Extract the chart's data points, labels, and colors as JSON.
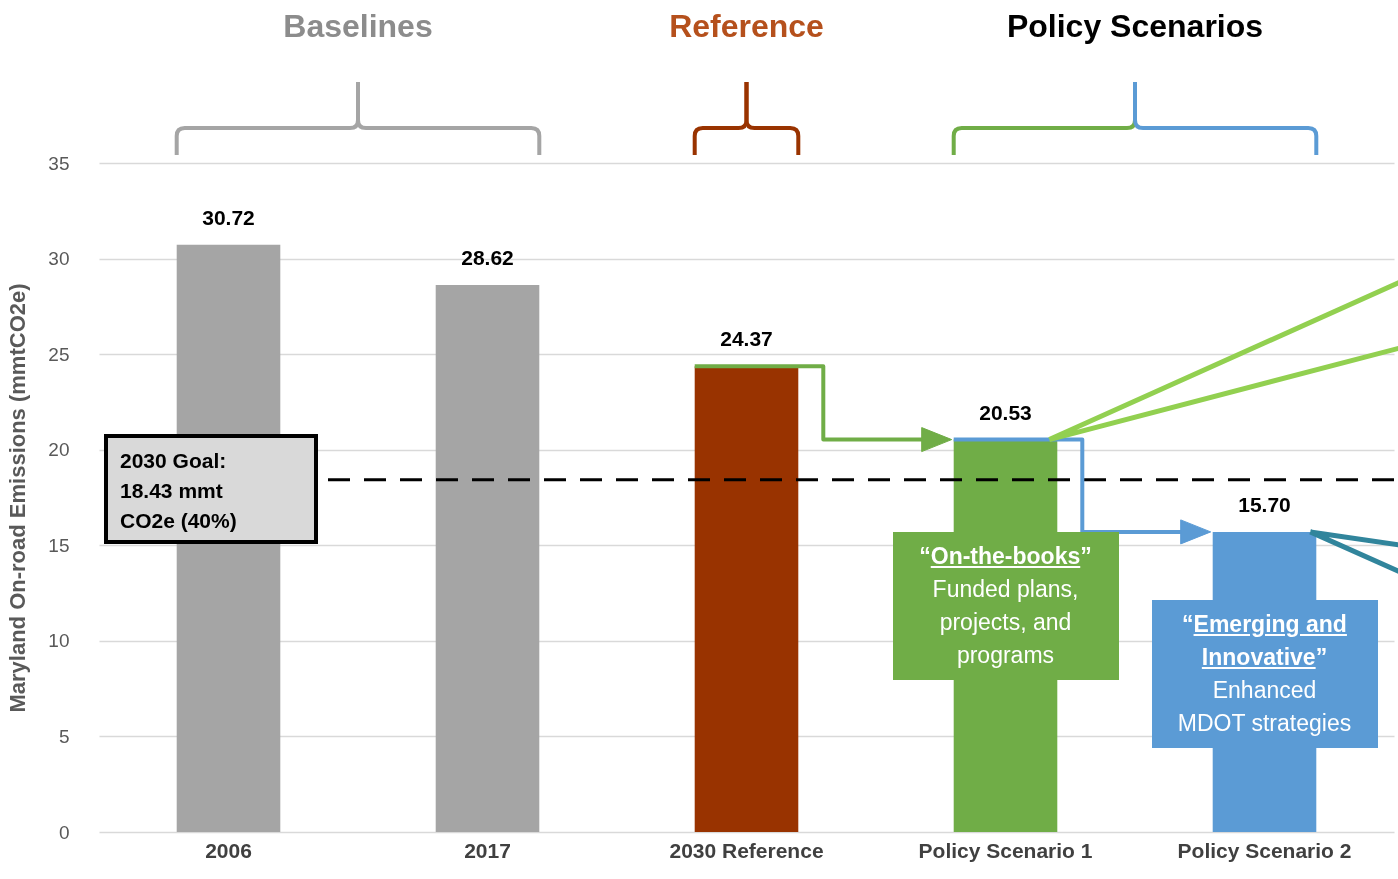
{
  "chart_data": {
    "type": "bar",
    "ylabel": "Maryland On-road Emissions (mmtCO2e)",
    "categories": [
      "2006",
      "2017",
      "2030 Reference",
      "Policy Scenario 1",
      "Policy Scenario 2"
    ],
    "values": [
      30.72,
      28.62,
      24.37,
      20.53,
      15.7
    ],
    "colors": [
      "#a5a5a5",
      "#a5a5a5",
      "#993300",
      "#70ad47",
      "#5b9bd5"
    ],
    "ylim": [
      0,
      35
    ],
    "yticks": [
      0,
      5,
      10,
      15,
      20,
      25,
      30,
      35
    ],
    "grid": "y",
    "data_labels": true,
    "value_labels": [
      "30.72",
      "28.62",
      "24.37",
      "20.53",
      "15.70"
    ],
    "ref_lines": [
      {
        "axis": "y",
        "value": 18.43,
        "label": "2030 Goal:\n18.43 mmt\nCO2e (40%)",
        "line_style": "dashed",
        "color": "#000000"
      }
    ],
    "annotations": [
      "Baselines",
      "Reference",
      "Policy Scenarios",
      "“On-the-books”\nFunded plans,\nprojects, and\nprograms",
      "“Emerging and\nInnovative”\nEnhanced\nMDOT strategies"
    ]
  }
}
